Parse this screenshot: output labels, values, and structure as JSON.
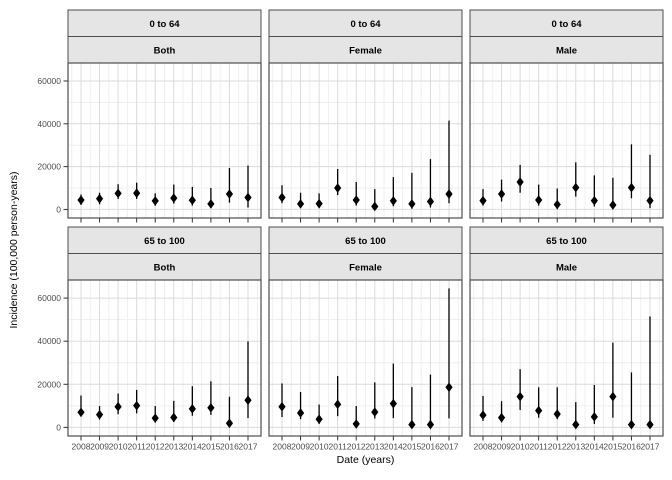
{
  "chart_data": {
    "type": "pointrange",
    "title": "",
    "xlabel": "Date (years)",
    "ylabel": "Incidence (100,000 person-years)",
    "x_years": [
      2008,
      2009,
      2010,
      2011,
      2012,
      2013,
      2014,
      2015,
      2016,
      2017
    ],
    "y_ticks": [
      0,
      20000,
      40000,
      60000
    ],
    "y_minor_ticks": [
      10000,
      30000,
      50000
    ],
    "ylim": [
      -4000,
      68400
    ],
    "grid": "major+minor",
    "legend_position": "none",
    "facet_rows": [
      "0 to 64",
      "65 to 100"
    ],
    "facet_cols": [
      "Both",
      "Female",
      "Male"
    ],
    "panels": [
      {
        "age": "0 to 64",
        "sex": "Both",
        "est": [
          4400,
          5000,
          7500,
          7600,
          4000,
          5300,
          4300,
          2600,
          7200,
          5600
        ],
        "lo": [
          2100,
          2400,
          4900,
          4900,
          1700,
          2700,
          1800,
          600,
          3200,
          900
        ],
        "hi": [
          7000,
          7800,
          11800,
          12500,
          7500,
          11600,
          10500,
          10000,
          19400,
          20500
        ]
      },
      {
        "age": "0 to 64",
        "sex": "Female",
        "est": [
          5600,
          2600,
          2700,
          10000,
          4400,
          1400,
          4000,
          2600,
          3700,
          7200
        ],
        "lo": [
          2900,
          600,
          600,
          6700,
          1800,
          100,
          1500,
          300,
          900,
          2900
        ],
        "hi": [
          11300,
          7800,
          7500,
          18900,
          12800,
          9500,
          15100,
          17100,
          23500,
          41500
        ]
      },
      {
        "age": "0 to 64",
        "sex": "Male",
        "est": [
          4100,
          7200,
          12800,
          4400,
          2300,
          10200,
          4100,
          2100,
          10200,
          4100
        ],
        "lo": [
          1800,
          3700,
          7800,
          1800,
          100,
          6000,
          1400,
          100,
          5200,
          600
        ],
        "hi": [
          9500,
          13900,
          20800,
          11600,
          9800,
          22000,
          15900,
          14800,
          30400,
          25500
        ]
      },
      {
        "age": "65 to 100",
        "sex": "Both",
        "est": [
          7000,
          5900,
          9600,
          10100,
          4300,
          4600,
          8600,
          9100,
          1900,
          12600
        ],
        "lo": [
          5100,
          3600,
          6100,
          6500,
          2200,
          2500,
          5400,
          5800,
          100,
          4300
        ],
        "hi": [
          14800,
          9900,
          15700,
          17400,
          9900,
          12300,
          19100,
          21400,
          14200,
          39900
        ]
      },
      {
        "age": "65 to 100",
        "sex": "Female",
        "est": [
          9600,
          6700,
          3800,
          10700,
          1600,
          7100,
          11000,
          1300,
          1300,
          18600
        ],
        "lo": [
          4800,
          3800,
          1600,
          5200,
          100,
          4100,
          4300,
          100,
          100,
          4200
        ],
        "hi": [
          20400,
          16400,
          10600,
          23800,
          9900,
          20900,
          29600,
          18700,
          24500,
          64500
        ]
      },
      {
        "age": "65 to 100",
        "sex": "Male",
        "est": [
          5700,
          4500,
          14300,
          7800,
          6200,
          1300,
          4900,
          14300,
          1300,
          1300
        ],
        "lo": [
          3000,
          2300,
          8100,
          4500,
          3800,
          100,
          1600,
          4500,
          100,
          100
        ],
        "hi": [
          14600,
          12200,
          27000,
          18600,
          18600,
          11700,
          19700,
          39300,
          25500,
          51500
        ]
      }
    ]
  },
  "colors": {
    "background": "#FFFFFF",
    "panel_fill": "#FFFFFF",
    "panel_border": "#4D4D4D",
    "strip_fill": "#E5E5E5",
    "strip_border": "#4D4D4D",
    "grid_major": "#DBDBDB",
    "grid_minor": "#EFEFEF",
    "point": "#000000",
    "axis_text": "#4D4D4D",
    "tick_mark": "#333333",
    "title_text": "#000000"
  }
}
